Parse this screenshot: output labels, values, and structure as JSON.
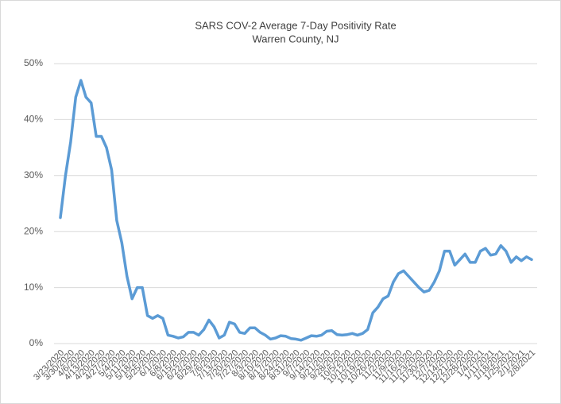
{
  "chart_data": {
    "type": "line",
    "title": "SARS COV-2 Average 7-Day Positivity Rate",
    "subtitle": "Warren County, NJ",
    "categories": [
      "3/23/2020",
      null,
      "3/30/2020",
      null,
      "4/6/2020",
      null,
      "4/13/2020",
      null,
      "4/20/2020",
      null,
      "4/27/2020",
      null,
      "5/4/2020",
      null,
      "5/11/2020",
      null,
      "5/18/2020",
      null,
      "5/25/2020",
      null,
      "6/1/2020",
      null,
      "6/8/2020",
      null,
      "6/15/2020",
      null,
      "6/22/2020",
      null,
      "6/29/2020",
      null,
      "7/6/2020",
      null,
      "7/13/2020",
      null,
      "7/20/2020",
      null,
      "7/27/2020",
      null,
      "8/3/2020",
      null,
      "8/10/2020",
      null,
      "8/17/2020",
      null,
      "8/24/2020",
      null,
      "8/31/2020",
      null,
      "9/7/2020",
      null,
      "9/14/2020",
      null,
      "9/21/2020",
      null,
      "9/28/2020",
      null,
      "10/5/2020",
      null,
      "10/12/2020",
      null,
      "10/19/2020",
      null,
      "10/26/2020",
      null,
      "11/2/2020",
      null,
      "11/9/2020",
      null,
      "11/16/2020",
      null,
      "11/23/2020",
      null,
      "11/30/2020",
      null,
      "12/7/2020",
      null,
      "12/14/2020",
      null,
      "12/21/2020",
      null,
      "12/28/2020",
      null,
      "1/4/2021",
      null,
      "1/11/2021",
      null,
      "1/18/2021",
      null,
      "1/25/2021",
      null,
      "2/1/2021",
      null,
      "2/8/2021"
    ],
    "series": [
      {
        "name": "Positivity Rate",
        "color": "#5b9bd5",
        "values": [
          22.5,
          30,
          36,
          44,
          47,
          44,
          43,
          37,
          37,
          35,
          31,
          22,
          18,
          12,
          8,
          10,
          10,
          5,
          4.5,
          5,
          4.5,
          1.5,
          1.3,
          1,
          1.2,
          2,
          2,
          1.5,
          2.5,
          4.2,
          3,
          1,
          1.5,
          3.8,
          3.5,
          2,
          1.8,
          2.8,
          2.8,
          2,
          1.5,
          0.8,
          1,
          1.4,
          1.3,
          0.9,
          0.8,
          0.6,
          1,
          1.4,
          1.3,
          1.5,
          2.2,
          2.3,
          1.6,
          1.5,
          1.6,
          1.8,
          1.5,
          1.8,
          2.5,
          5.5,
          6.5,
          8,
          8.5,
          11,
          12.5,
          13,
          12,
          11,
          10,
          9.2,
          9.5,
          11,
          13,
          16.5,
          16.5,
          14,
          15,
          16,
          14.5,
          14.5,
          16.5,
          17,
          15.8,
          16,
          17.5,
          16.5,
          14.5,
          15.5,
          14.8,
          15.5,
          15
        ]
      }
    ],
    "ylim": [
      0,
      50
    ],
    "yticks": [
      {
        "value": 0,
        "label": "0%"
      },
      {
        "value": 10,
        "label": "10%"
      },
      {
        "value": 20,
        "label": "20%"
      },
      {
        "value": 30,
        "label": "30%"
      },
      {
        "value": 40,
        "label": "40%"
      },
      {
        "value": 50,
        "label": "50%"
      }
    ],
    "grid": true
  }
}
